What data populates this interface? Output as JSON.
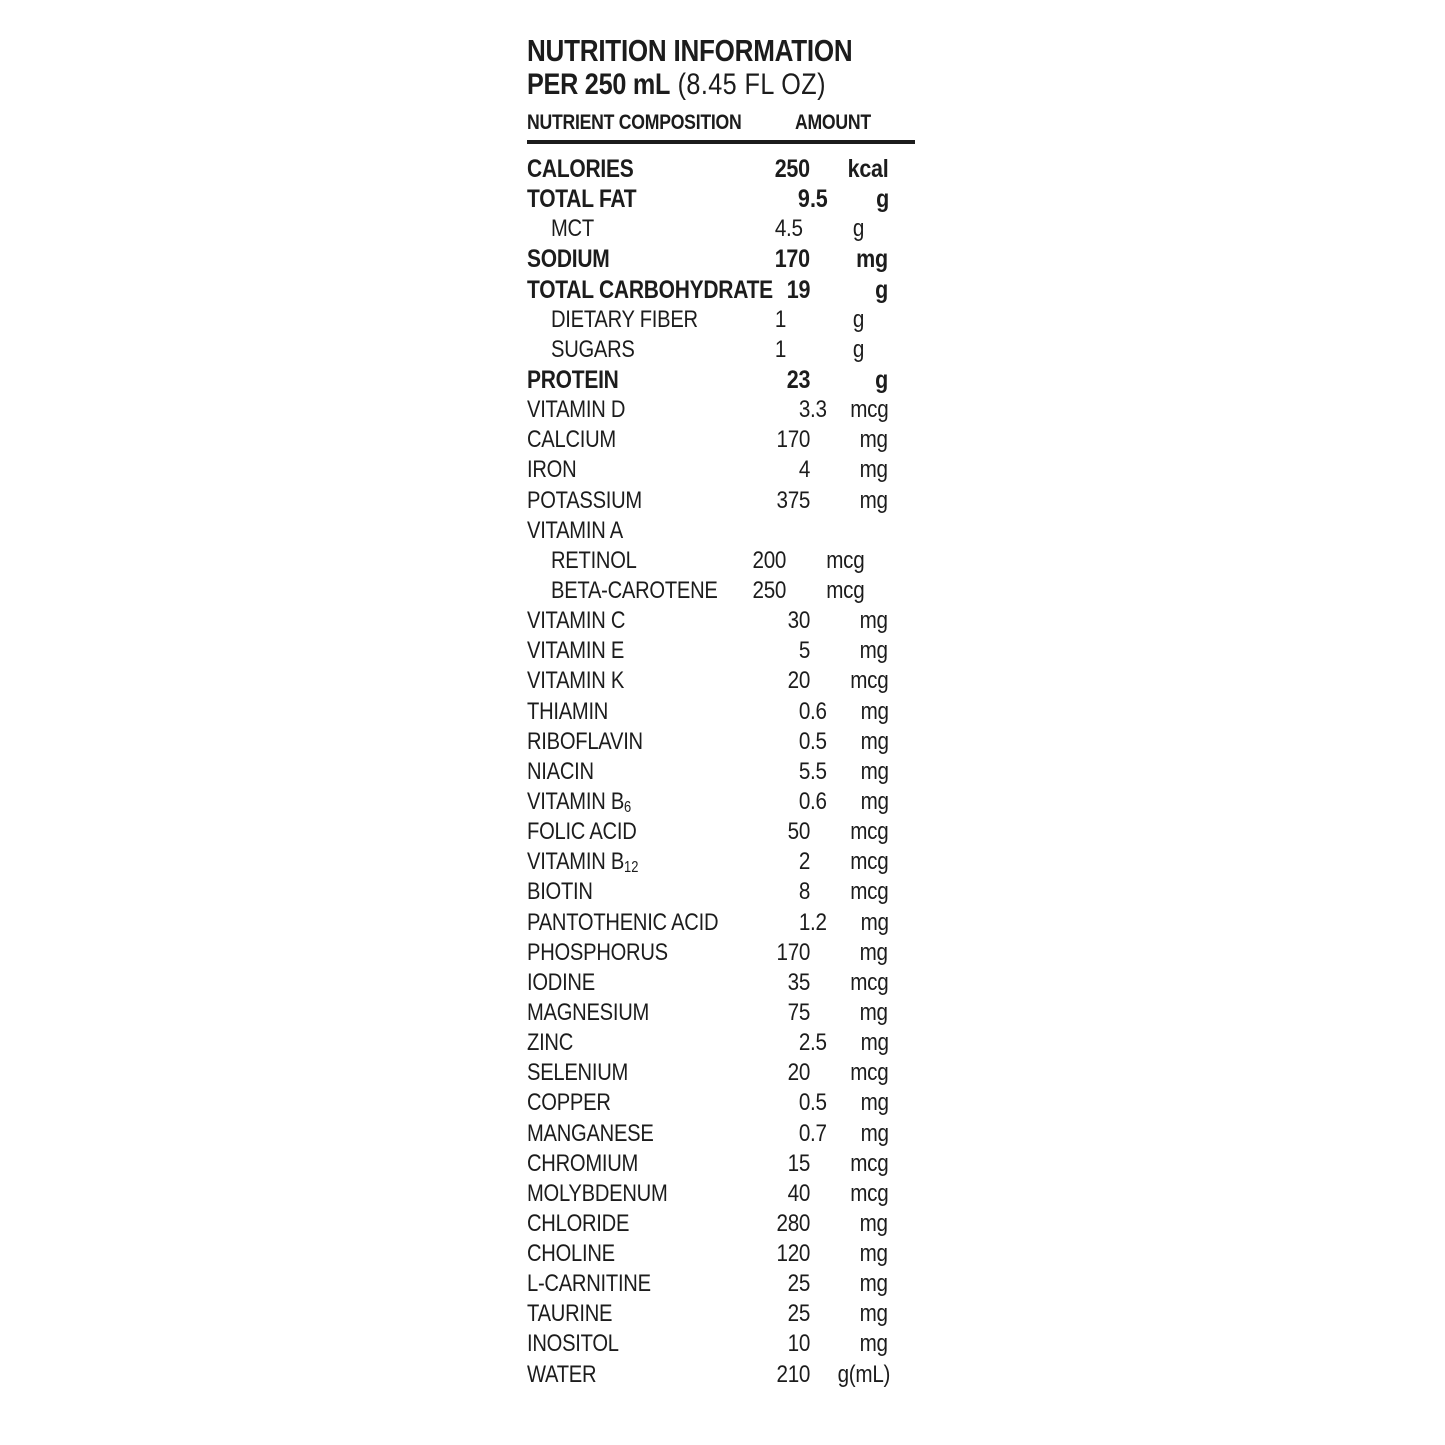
{
  "header": {
    "title": "NUTRITION INFORMATION",
    "serving_bold": "PER 250 mL",
    "serving_regular": " (8.45 FL OZ)",
    "col_nutrient": "NUTRIENT COMPOSITION",
    "col_amount": "AMOUNT"
  },
  "colors": {
    "text": "#1c1c1c",
    "background": "#ffffff",
    "rule": "#1c1c1c"
  },
  "table": {
    "rows": [
      {
        "label": "CALORIES",
        "sub": "",
        "value": "250",
        "unit": "kcal",
        "bold": true,
        "indent": false
      },
      {
        "label": "TOTAL FAT",
        "sub": "",
        "value": "9.5",
        "unit": "g",
        "bold": true,
        "indent": false
      },
      {
        "label": "MCT",
        "sub": "",
        "value": "4.5",
        "unit": "g",
        "bold": false,
        "indent": true
      },
      {
        "label": "SODIUM",
        "sub": "",
        "value": "170",
        "unit": "mg",
        "bold": true,
        "indent": false
      },
      {
        "label": "TOTAL CARBOHYDRATE",
        "sub": "",
        "value": "19",
        "unit": "g",
        "bold": true,
        "indent": false
      },
      {
        "label": "DIETARY FIBER",
        "sub": "",
        "value": "1",
        "unit": "g",
        "bold": false,
        "indent": true
      },
      {
        "label": "SUGARS",
        "sub": "",
        "value": "1",
        "unit": "g",
        "bold": false,
        "indent": true
      },
      {
        "label": "PROTEIN",
        "sub": "",
        "value": "23",
        "unit": "g",
        "bold": true,
        "indent": false
      },
      {
        "label": "VITAMIN D",
        "sub": "",
        "value": "3.3",
        "unit": "mcg",
        "bold": false,
        "indent": false
      },
      {
        "label": "CALCIUM",
        "sub": "",
        "value": "170",
        "unit": "mg",
        "bold": false,
        "indent": false
      },
      {
        "label": "IRON",
        "sub": "",
        "value": "4",
        "unit": "mg",
        "bold": false,
        "indent": false
      },
      {
        "label": "POTASSIUM",
        "sub": "",
        "value": "375",
        "unit": "mg",
        "bold": false,
        "indent": false
      },
      {
        "label": "VITAMIN A",
        "sub": "",
        "value": "",
        "unit": "",
        "bold": false,
        "indent": false
      },
      {
        "label": "RETINOL",
        "sub": "",
        "value": "200",
        "unit": "mcg",
        "bold": false,
        "indent": true
      },
      {
        "label": "BETA-CAROTENE",
        "sub": "",
        "value": "250",
        "unit": "mcg",
        "bold": false,
        "indent": true
      },
      {
        "label": "VITAMIN C",
        "sub": "",
        "value": "30",
        "unit": "mg",
        "bold": false,
        "indent": false
      },
      {
        "label": "VITAMIN E",
        "sub": "",
        "value": "5",
        "unit": "mg",
        "bold": false,
        "indent": false
      },
      {
        "label": "VITAMIN K",
        "sub": "",
        "value": "20",
        "unit": "mcg",
        "bold": false,
        "indent": false
      },
      {
        "label": "THIAMIN",
        "sub": "",
        "value": "0.6",
        "unit": "mg",
        "bold": false,
        "indent": false
      },
      {
        "label": "RIBOFLAVIN",
        "sub": "",
        "value": "0.5",
        "unit": "mg",
        "bold": false,
        "indent": false
      },
      {
        "label": "NIACIN",
        "sub": "",
        "value": "5.5",
        "unit": "mg",
        "bold": false,
        "indent": false
      },
      {
        "label": "VITAMIN B",
        "sub": "6",
        "value": "0.6",
        "unit": "mg",
        "bold": false,
        "indent": false
      },
      {
        "label": "FOLIC ACID",
        "sub": "",
        "value": "50",
        "unit": "mcg",
        "bold": false,
        "indent": false
      },
      {
        "label": "VITAMIN B",
        "sub": "12",
        "value": "2",
        "unit": "mcg",
        "bold": false,
        "indent": false
      },
      {
        "label": "BIOTIN",
        "sub": "",
        "value": "8",
        "unit": "mcg",
        "bold": false,
        "indent": false
      },
      {
        "label": "PANTOTHENIC ACID",
        "sub": "",
        "value": "1.2",
        "unit": "mg",
        "bold": false,
        "indent": false
      },
      {
        "label": "PHOSPHORUS",
        "sub": "",
        "value": "170",
        "unit": "mg",
        "bold": false,
        "indent": false
      },
      {
        "label": "IODINE",
        "sub": "",
        "value": "35",
        "unit": "mcg",
        "bold": false,
        "indent": false
      },
      {
        "label": "MAGNESIUM",
        "sub": "",
        "value": "75",
        "unit": "mg",
        "bold": false,
        "indent": false
      },
      {
        "label": "ZINC",
        "sub": "",
        "value": "2.5",
        "unit": "mg",
        "bold": false,
        "indent": false
      },
      {
        "label": "SELENIUM",
        "sub": "",
        "value": "20",
        "unit": "mcg",
        "bold": false,
        "indent": false
      },
      {
        "label": "COPPER",
        "sub": "",
        "value": "0.5",
        "unit": "mg",
        "bold": false,
        "indent": false
      },
      {
        "label": "MANGANESE",
        "sub": "",
        "value": "0.7",
        "unit": "mg",
        "bold": false,
        "indent": false
      },
      {
        "label": "CHROMIUM",
        "sub": "",
        "value": "15",
        "unit": "mcg",
        "bold": false,
        "indent": false
      },
      {
        "label": "MOLYBDENUM",
        "sub": "",
        "value": "40",
        "unit": "mcg",
        "bold": false,
        "indent": false
      },
      {
        "label": "CHLORIDE",
        "sub": "",
        "value": "280",
        "unit": "mg",
        "bold": false,
        "indent": false
      },
      {
        "label": "CHOLINE",
        "sub": "",
        "value": "120",
        "unit": "mg",
        "bold": false,
        "indent": false
      },
      {
        "label": "L-CARNITINE",
        "sub": "",
        "value": "25",
        "unit": "mg",
        "bold": false,
        "indent": false
      },
      {
        "label": "TAURINE",
        "sub": "",
        "value": "25",
        "unit": "mg",
        "bold": false,
        "indent": false
      },
      {
        "label": "INOSITOL",
        "sub": "",
        "value": "10",
        "unit": "mg",
        "bold": false,
        "indent": false
      },
      {
        "label": "WATER",
        "sub": "",
        "value": "210",
        "unit": "g(mL)",
        "bold": false,
        "indent": false
      }
    ]
  }
}
